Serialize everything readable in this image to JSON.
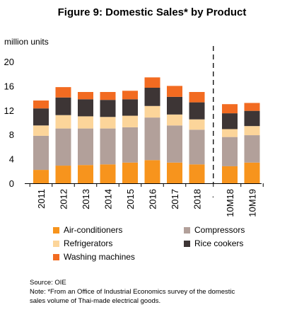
{
  "title": "Figure 9: Domestic Sales* by Product",
  "ylabel": "million units",
  "source": "Source: OIE",
  "note_line1": "Note: *From an Office of Industrial Economics survey of the domestic",
  "note_line2": "sales volume of Thai-made electrical goods.",
  "chart_data": {
    "type": "bar",
    "stacked": true,
    "categories": [
      "2011",
      "2012",
      "2013",
      "2014",
      "2015",
      "2016",
      "2017",
      "2018",
      "10M18",
      "10M19"
    ],
    "ylim": [
      0,
      20
    ],
    "yticks": [
      0,
      4,
      8,
      12,
      16,
      20
    ],
    "separator_after_category": "2018",
    "legend_position": "bottom",
    "series": [
      {
        "name": "Air-conditioners",
        "color": "#f7941d",
        "values": [
          2.2,
          2.9,
          3.0,
          3.1,
          3.4,
          3.8,
          3.4,
          3.1,
          2.8,
          3.4
        ]
      },
      {
        "name": "Compressors",
        "color": "#b2a09a",
        "values": [
          5.6,
          6.1,
          6.0,
          5.9,
          5.8,
          7.0,
          6.1,
          5.7,
          4.8,
          4.5
        ]
      },
      {
        "name": "Refrigerators",
        "color": "#fcd59a",
        "values": [
          1.7,
          2.2,
          2.0,
          1.9,
          1.9,
          1.9,
          1.8,
          1.7,
          1.3,
          1.5
        ]
      },
      {
        "name": "Rice cookers",
        "color": "#3d3535",
        "values": [
          2.8,
          2.9,
          2.8,
          2.8,
          2.7,
          3.0,
          2.9,
          2.8,
          2.6,
          2.5
        ]
      },
      {
        "name": "Washing machines",
        "color": "#f26b21",
        "values": [
          1.3,
          1.7,
          1.2,
          1.3,
          1.4,
          1.7,
          1.8,
          1.7,
          1.5,
          1.3
        ]
      }
    ]
  }
}
